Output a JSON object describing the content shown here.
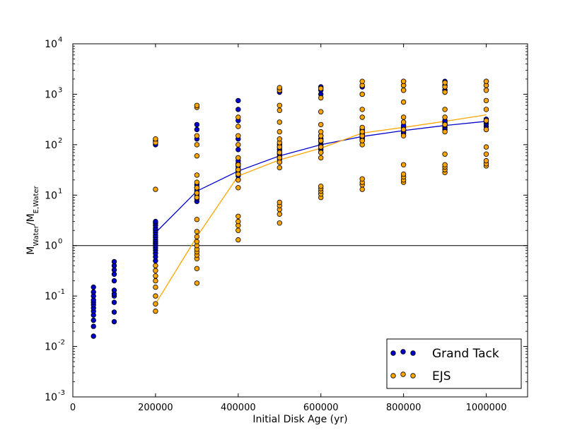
{
  "chart_data": {
    "type": "scatter",
    "xlabel": "Initial Disk Age (yr)",
    "ylabel": {
      "main": "M",
      "sub_main": "Water",
      "sep": "/M",
      "sub_den": "E,Water"
    },
    "xlim": [
      0,
      1100000
    ],
    "ylim": [
      0.001,
      10000
    ],
    "yscale": "log",
    "x_ticks": [
      0,
      200000,
      400000,
      600000,
      800000,
      1000000
    ],
    "x_tick_labels": [
      "0",
      "200000",
      "400000",
      "600000",
      "800000",
      "1000000"
    ],
    "y_ticks": [
      0.001,
      0.01,
      0.1,
      1,
      10,
      100,
      1000,
      10000
    ],
    "y_tick_labels": [
      {
        "base": "10",
        "exp": "-3"
      },
      {
        "base": "10",
        "exp": "-2"
      },
      {
        "base": "10",
        "exp": "-1"
      },
      {
        "base": "10",
        "exp": "0"
      },
      {
        "base": "10",
        "exp": "1"
      },
      {
        "base": "10",
        "exp": "2"
      },
      {
        "base": "10",
        "exp": "3"
      },
      {
        "base": "10",
        "exp": "4"
      }
    ],
    "reference_line": {
      "y": 1,
      "color": "#000000"
    },
    "legend": {
      "position": "lower-right"
    },
    "series": [
      {
        "name": "Grand Tack",
        "color": "#0000cc",
        "points": [
          [
            50000,
            0.016
          ],
          [
            50000,
            0.025
          ],
          [
            50000,
            0.033
          ],
          [
            50000,
            0.042
          ],
          [
            50000,
            0.05
          ],
          [
            50000,
            0.058
          ],
          [
            50000,
            0.067
          ],
          [
            50000,
            0.075
          ],
          [
            50000,
            0.083
          ],
          [
            50000,
            0.1
          ],
          [
            50000,
            0.12
          ],
          [
            50000,
            0.15
          ],
          [
            100000,
            0.031
          ],
          [
            100000,
            0.048
          ],
          [
            100000,
            0.075
          ],
          [
            100000,
            0.1
          ],
          [
            100000,
            0.11
          ],
          [
            100000,
            0.13
          ],
          [
            100000,
            0.2
          ],
          [
            100000,
            0.27
          ],
          [
            100000,
            0.33
          ],
          [
            100000,
            0.4
          ],
          [
            100000,
            0.48
          ],
          [
            200000,
            0.5
          ],
          [
            200000,
            0.6
          ],
          [
            200000,
            0.7
          ],
          [
            200000,
            0.8
          ],
          [
            200000,
            0.9
          ],
          [
            200000,
            1.0
          ],
          [
            200000,
            1.1
          ],
          [
            200000,
            1.2
          ],
          [
            200000,
            1.3
          ],
          [
            200000,
            1.45
          ],
          [
            200000,
            1.6
          ],
          [
            200000,
            1.8
          ],
          [
            200000,
            2.0
          ],
          [
            200000,
            2.2
          ],
          [
            200000,
            2.5
          ],
          [
            200000,
            2.8
          ],
          [
            200000,
            3.0
          ],
          [
            200000,
            100
          ],
          [
            200000,
            120
          ],
          [
            300000,
            7.5
          ],
          [
            300000,
            8.5
          ],
          [
            300000,
            9.5
          ],
          [
            300000,
            10.5
          ],
          [
            300000,
            11.5
          ],
          [
            300000,
            12.5
          ],
          [
            300000,
            14
          ],
          [
            300000,
            16
          ],
          [
            300000,
            130
          ],
          [
            300000,
            200
          ],
          [
            300000,
            250
          ],
          [
            400000,
            20
          ],
          [
            400000,
            24
          ],
          [
            400000,
            27
          ],
          [
            400000,
            30
          ],
          [
            400000,
            33
          ],
          [
            400000,
            37
          ],
          [
            400000,
            42
          ],
          [
            400000,
            48
          ],
          [
            400000,
            55
          ],
          [
            400000,
            80
          ],
          [
            400000,
            130
          ],
          [
            400000,
            300
          ],
          [
            400000,
            500
          ],
          [
            400000,
            750
          ],
          [
            500000,
            45
          ],
          [
            500000,
            52
          ],
          [
            500000,
            58
          ],
          [
            500000,
            65
          ],
          [
            500000,
            72
          ],
          [
            500000,
            80
          ],
          [
            500000,
            90
          ],
          [
            500000,
            100
          ],
          [
            500000,
            1100
          ],
          [
            500000,
            1300
          ],
          [
            600000,
            70
          ],
          [
            600000,
            80
          ],
          [
            600000,
            90
          ],
          [
            600000,
            100
          ],
          [
            600000,
            115
          ],
          [
            600000,
            130
          ],
          [
            600000,
            150
          ],
          [
            600000,
            1000
          ],
          [
            600000,
            1200
          ],
          [
            600000,
            1400
          ],
          [
            700000,
            120
          ],
          [
            700000,
            130
          ],
          [
            700000,
            140
          ],
          [
            700000,
            150
          ],
          [
            700000,
            160
          ],
          [
            700000,
            170
          ],
          [
            700000,
            185
          ],
          [
            700000,
            200
          ],
          [
            700000,
            1000
          ],
          [
            700000,
            1400
          ],
          [
            800000,
            170
          ],
          [
            800000,
            185
          ],
          [
            800000,
            200
          ],
          [
            800000,
            220
          ],
          [
            800000,
            240
          ],
          [
            800000,
            1200
          ],
          [
            800000,
            1500
          ],
          [
            800000,
            1800
          ],
          [
            900000,
            200
          ],
          [
            900000,
            220
          ],
          [
            900000,
            240
          ],
          [
            900000,
            260
          ],
          [
            900000,
            280
          ],
          [
            900000,
            300
          ],
          [
            900000,
            1200
          ],
          [
            900000,
            1500
          ],
          [
            900000,
            1800
          ],
          [
            1000000,
            200
          ],
          [
            1000000,
            230
          ],
          [
            1000000,
            260
          ],
          [
            1000000,
            290
          ],
          [
            1000000,
            320
          ],
          [
            1000000,
            1200
          ],
          [
            1000000,
            1500
          ],
          [
            1000000,
            1800
          ]
        ],
        "line_x": [
          200000,
          300000,
          400000,
          500000,
          600000,
          700000,
          800000,
          900000,
          1000000
        ],
        "line_y": [
          1.8,
          12,
          30,
          60,
          100,
          145,
          190,
          240,
          290
        ]
      },
      {
        "name": "EJS",
        "color": "#ffa500",
        "points": [
          [
            200000,
            0.05
          ],
          [
            200000,
            0.07
          ],
          [
            200000,
            0.1
          ],
          [
            200000,
            0.15
          ],
          [
            200000,
            0.2
          ],
          [
            200000,
            0.25
          ],
          [
            200000,
            0.32
          ],
          [
            200000,
            0.4
          ],
          [
            200000,
            13
          ],
          [
            200000,
            110
          ],
          [
            200000,
            130
          ],
          [
            300000,
            0.18
          ],
          [
            300000,
            0.35
          ],
          [
            300000,
            0.55
          ],
          [
            300000,
            0.65
          ],
          [
            300000,
            0.75
          ],
          [
            300000,
            0.85
          ],
          [
            300000,
            1.0
          ],
          [
            300000,
            1.2
          ],
          [
            300000,
            1.5
          ],
          [
            300000,
            1.9
          ],
          [
            300000,
            3.3
          ],
          [
            300000,
            9
          ],
          [
            300000,
            11
          ],
          [
            300000,
            14
          ],
          [
            300000,
            18
          ],
          [
            300000,
            25
          ],
          [
            300000,
            60
          ],
          [
            300000,
            100
          ],
          [
            300000,
            150
          ],
          [
            300000,
            550
          ],
          [
            300000,
            600
          ],
          [
            400000,
            1.3
          ],
          [
            400000,
            2.0
          ],
          [
            400000,
            2.5
          ],
          [
            400000,
            3.0
          ],
          [
            400000,
            3.8
          ],
          [
            400000,
            14
          ],
          [
            400000,
            20
          ],
          [
            400000,
            26
          ],
          [
            400000,
            32
          ],
          [
            400000,
            40
          ],
          [
            400000,
            55
          ],
          [
            400000,
            100
          ],
          [
            400000,
            150
          ],
          [
            400000,
            230
          ],
          [
            400000,
            350
          ],
          [
            500000,
            2.8
          ],
          [
            500000,
            4.2
          ],
          [
            500000,
            5.2
          ],
          [
            500000,
            6.2
          ],
          [
            500000,
            7.2
          ],
          [
            500000,
            35
          ],
          [
            500000,
            45
          ],
          [
            500000,
            55
          ],
          [
            500000,
            70
          ],
          [
            500000,
            90
          ],
          [
            500000,
            110
          ],
          [
            500000,
            130
          ],
          [
            500000,
            180
          ],
          [
            500000,
            280
          ],
          [
            500000,
            480
          ],
          [
            500000,
            600
          ],
          [
            500000,
            1200
          ],
          [
            500000,
            1350
          ],
          [
            600000,
            9
          ],
          [
            600000,
            10.5
          ],
          [
            600000,
            12
          ],
          [
            600000,
            13.5
          ],
          [
            600000,
            15
          ],
          [
            600000,
            55
          ],
          [
            600000,
            70
          ],
          [
            600000,
            90
          ],
          [
            600000,
            120
          ],
          [
            600000,
            150
          ],
          [
            600000,
            180
          ],
          [
            600000,
            250
          ],
          [
            600000,
            450
          ],
          [
            600000,
            850
          ],
          [
            600000,
            1300
          ],
          [
            700000,
            13
          ],
          [
            700000,
            16
          ],
          [
            700000,
            18
          ],
          [
            700000,
            21
          ],
          [
            700000,
            100
          ],
          [
            700000,
            120
          ],
          [
            700000,
            150
          ],
          [
            700000,
            180
          ],
          [
            700000,
            220
          ],
          [
            700000,
            350
          ],
          [
            700000,
            500
          ],
          [
            700000,
            1000
          ],
          [
            700000,
            1500
          ],
          [
            700000,
            1800
          ],
          [
            800000,
            18
          ],
          [
            800000,
            20
          ],
          [
            800000,
            23
          ],
          [
            800000,
            26
          ],
          [
            800000,
            40
          ],
          [
            800000,
            150
          ],
          [
            800000,
            200
          ],
          [
            800000,
            280
          ],
          [
            800000,
            350
          ],
          [
            800000,
            700
          ],
          [
            800000,
            1200
          ],
          [
            800000,
            1500
          ],
          [
            800000,
            1800
          ],
          [
            900000,
            28
          ],
          [
            900000,
            32
          ],
          [
            900000,
            36
          ],
          [
            900000,
            40
          ],
          [
            900000,
            65
          ],
          [
            900000,
            180
          ],
          [
            900000,
            250
          ],
          [
            900000,
            350
          ],
          [
            900000,
            500
          ],
          [
            900000,
            1100
          ],
          [
            900000,
            1400
          ],
          [
            900000,
            1700
          ],
          [
            1000000,
            38
          ],
          [
            1000000,
            42
          ],
          [
            1000000,
            48
          ],
          [
            1000000,
            65
          ],
          [
            1000000,
            90
          ],
          [
            1000000,
            200
          ],
          [
            1000000,
            300
          ],
          [
            1000000,
            500
          ],
          [
            1000000,
            750
          ],
          [
            1000000,
            1200
          ],
          [
            1000000,
            1500
          ],
          [
            1000000,
            1800
          ]
        ],
        "line_x": [
          200000,
          300000,
          400000,
          500000,
          600000,
          700000,
          800000,
          900000,
          1000000
        ],
        "line_y": [
          0.07,
          1.5,
          24,
          50,
          85,
          170,
          220,
          290,
          390
        ]
      }
    ]
  }
}
